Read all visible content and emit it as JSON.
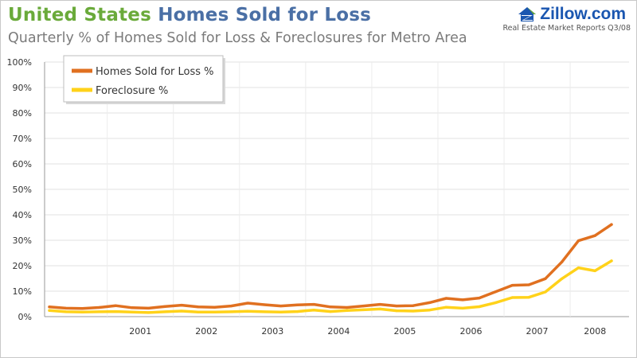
{
  "header": {
    "title_part1": "United States",
    "title_part2": "Homes Sold for Loss",
    "subtitle": "Quarterly % of Homes Sold for Loss & Foreclosures for Metro Area",
    "brand": "Zillow.com",
    "report": "Real Estate Market Reports Q3/08"
  },
  "colors": {
    "title_green": "#6aaa3a",
    "title_blue": "#4a6fa5",
    "loss_line": "#e07020",
    "foreclosure_line": "#ffd21a",
    "brand_blue": "#1a56b0",
    "brand_green": "#6aaa3a"
  },
  "chart_data": {
    "type": "line",
    "title": "Homes Sold for Loss",
    "subtitle": "Quarterly % of Homes Sold for Loss & Foreclosures for Metro Area",
    "xlabel": "",
    "ylabel": "",
    "x": [
      "2000 Q1",
      "2000 Q2",
      "2000 Q3",
      "2000 Q4",
      "2001 Q1",
      "2001 Q2",
      "2001 Q3",
      "2001 Q4",
      "2002 Q1",
      "2002 Q2",
      "2002 Q3",
      "2002 Q4",
      "2003 Q1",
      "2003 Q2",
      "2003 Q3",
      "2003 Q4",
      "2004 Q1",
      "2004 Q2",
      "2004 Q3",
      "2004 Q4",
      "2005 Q1",
      "2005 Q2",
      "2005 Q3",
      "2005 Q4",
      "2006 Q1",
      "2006 Q2",
      "2006 Q3",
      "2006 Q4",
      "2007 Q1",
      "2007 Q2",
      "2007 Q3",
      "2007 Q4",
      "2008 Q1",
      "2008 Q2",
      "2008 Q3"
    ],
    "x_tick_labels": [
      "2001",
      "2002",
      "2003",
      "2004",
      "2005",
      "2006",
      "2007",
      "2008"
    ],
    "y_tick_labels": [
      "0%",
      "10%",
      "20%",
      "30%",
      "40%",
      "50%",
      "60%",
      "70%",
      "80%",
      "90%",
      "100%"
    ],
    "ylim": [
      0,
      100
    ],
    "grid": true,
    "legend_position": "top-left",
    "series": [
      {
        "name": "Homes Sold for Loss %",
        "color": "#e07020",
        "values": [
          3.8,
          3.3,
          3.2,
          3.6,
          4.3,
          3.5,
          3.3,
          4.0,
          4.5,
          3.8,
          3.7,
          4.2,
          5.3,
          4.7,
          4.2,
          4.6,
          4.8,
          3.8,
          3.6,
          4.2,
          4.8,
          4.2,
          4.3,
          5.5,
          7.2,
          6.6,
          7.3,
          9.8,
          12.3,
          12.5,
          14.9,
          21.5,
          29.8,
          31.8,
          36.2
        ]
      },
      {
        "name": "Foreclosure %",
        "color": "#ffd21a",
        "values": [
          2.4,
          1.9,
          1.8,
          1.9,
          2.0,
          1.8,
          1.6,
          1.9,
          2.2,
          1.8,
          1.8,
          1.9,
          2.1,
          1.9,
          1.8,
          2.0,
          2.6,
          2.0,
          2.4,
          2.7,
          3.0,
          2.3,
          2.2,
          2.6,
          3.7,
          3.3,
          3.9,
          5.5,
          7.5,
          7.6,
          9.7,
          14.9,
          19.2,
          18.0,
          21.9
        ]
      }
    ]
  }
}
